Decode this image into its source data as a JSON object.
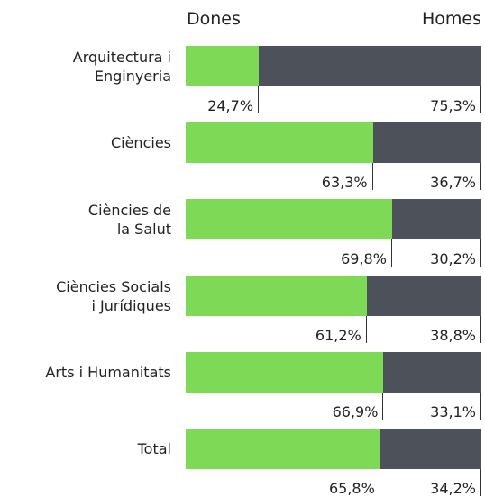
{
  "chart_data": {
    "type": "bar",
    "orientation": "horizontal",
    "stacked": true,
    "categories": [
      "Arquitectura i\nEnginyeria",
      "Ciències",
      "Ciències de\nla Salut",
      "Ciències Socials\ni Jurídiques",
      "Arts i Humanitats",
      "Total"
    ],
    "xlim": [
      0,
      100
    ],
    "series": [
      {
        "name": "Dones",
        "color": "#7ed957",
        "values": [
          24.7,
          63.3,
          69.8,
          61.2,
          66.9,
          65.8
        ],
        "value_labels": [
          "24,7%",
          "63,3%",
          "69,8%",
          "61,2%",
          "66,9%",
          "65,8%"
        ]
      },
      {
        "name": "Homes",
        "color": "#4d5159",
        "values": [
          75.3,
          36.7,
          30.2,
          38.8,
          33.1,
          34.2
        ],
        "value_labels": [
          "75,3%",
          "36,7%",
          "30,2%",
          "38,8%",
          "33,1%",
          "34,2%"
        ]
      }
    ]
  }
}
